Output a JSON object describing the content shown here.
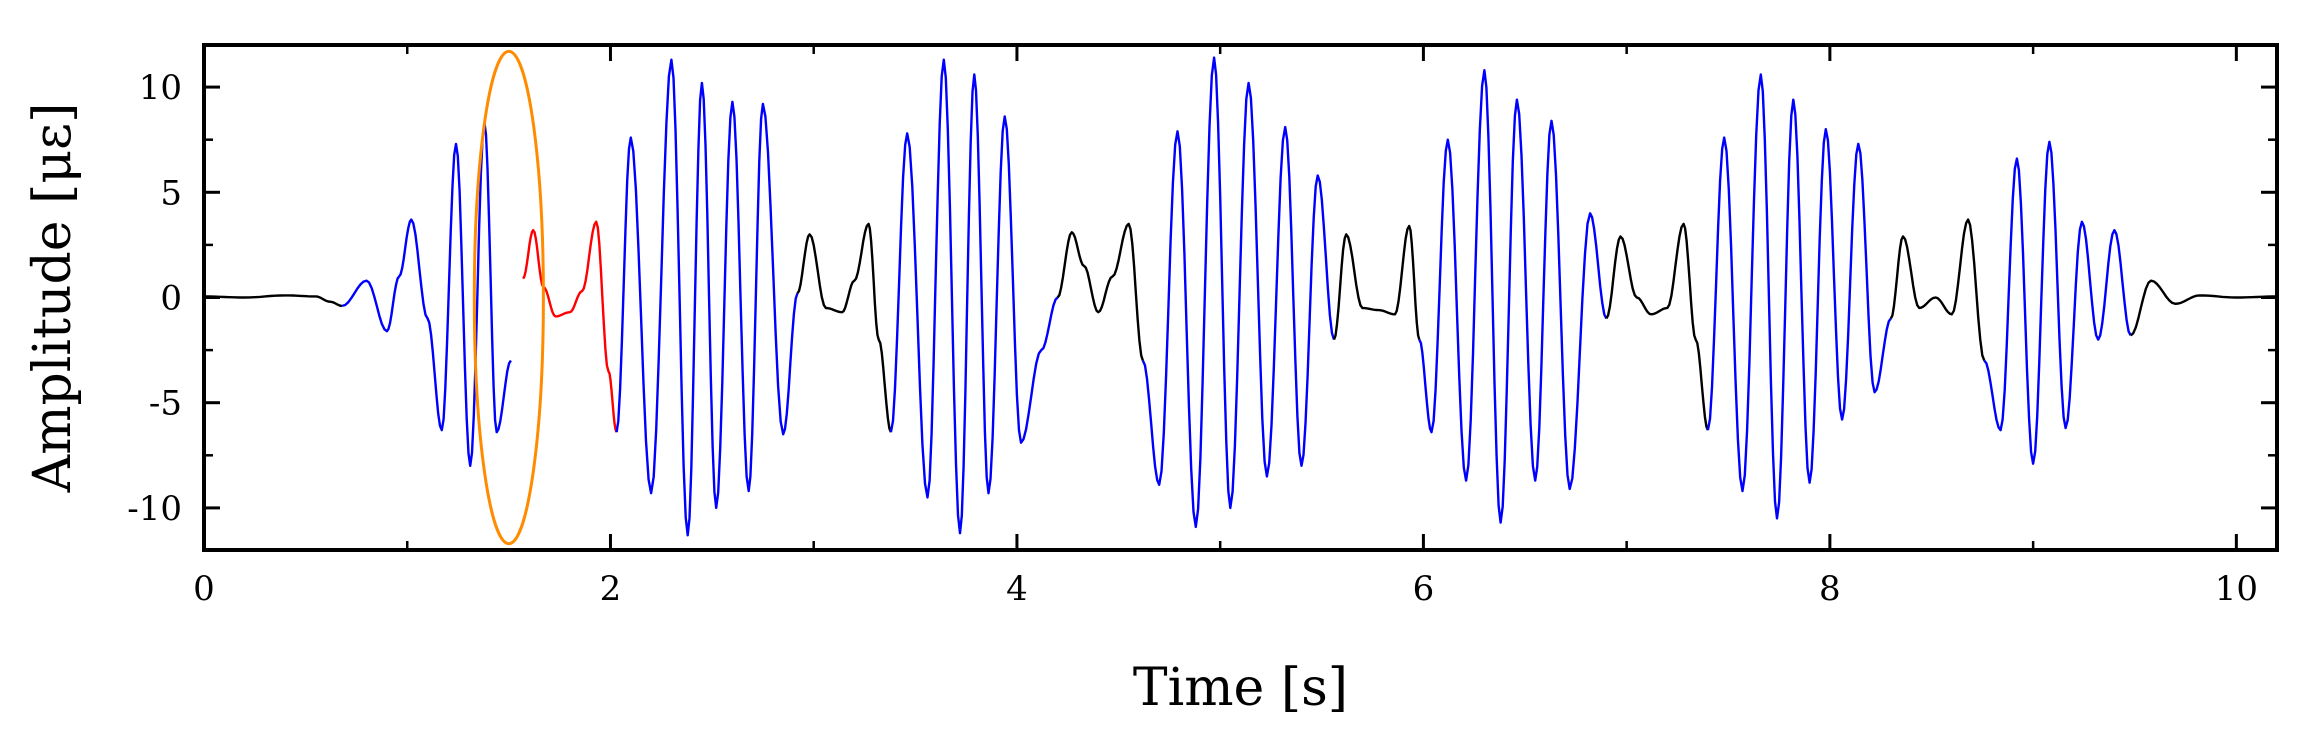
{
  "chart_data": {
    "type": "line",
    "title": "",
    "xlabel": "Time [s]",
    "ylabel": "Amplitude [με]",
    "xlim": [
      0,
      10.2
    ],
    "ylim": [
      -12,
      12
    ],
    "xticks": [
      0,
      2,
      4,
      6,
      8,
      10
    ],
    "yticks": [
      -10,
      -5,
      0,
      5,
      10
    ],
    "xtick_labels": [
      "0",
      "2",
      "4",
      "6",
      "8",
      "10"
    ],
    "ytick_labels": [
      "-10",
      "-5",
      "0",
      "5",
      "10"
    ],
    "grid": false,
    "colors": {
      "main": "#0000ff",
      "baseline": "#000000",
      "highlight": "#ff0000",
      "ellipse": "#ff8c00"
    },
    "series": [
      {
        "color": "#000000",
        "x": [
          0,
          0.2,
          0.4,
          0.55,
          0.62,
          0.68
        ],
        "y": [
          0.05,
          0.0,
          0.1,
          0.05,
          -0.2,
          -0.4
        ]
      },
      {
        "color": "#0000ff",
        "x": [
          0.68,
          0.8,
          0.9,
          0.96,
          1.02,
          1.1,
          1.17,
          1.24,
          1.31,
          1.38,
          1.44,
          1.51
        ],
        "y": [
          -0.4,
          0.8,
          -1.6,
          1.0,
          3.7,
          -1.0,
          -6.3,
          7.3,
          -8.0,
          8.3,
          -6.4,
          -3.0
        ]
      },
      {
        "color": "#ff0000",
        "x": [
          1.57,
          1.62,
          1.67,
          1.73,
          1.8,
          1.86,
          1.93,
          1.99,
          2.03
        ],
        "y": [
          0.9,
          3.2,
          0.5,
          -0.9,
          -0.7,
          0.3,
          3.6,
          -3.5,
          -6.4
        ]
      },
      {
        "color": "#0000ff",
        "x": [
          2.03,
          2.1,
          2.2,
          2.3,
          2.38,
          2.45,
          2.52,
          2.6,
          2.68,
          2.75,
          2.85,
          2.92
        ],
        "y": [
          -6.4,
          7.6,
          -9.3,
          11.3,
          -11.3,
          10.2,
          -10.0,
          9.3,
          -9.2,
          9.2,
          -6.5,
          0.2
        ]
      },
      {
        "color": "#000000",
        "x": [
          2.92,
          2.98,
          3.06,
          3.14,
          3.2,
          3.27,
          3.32,
          3.38
        ],
        "y": [
          0.2,
          3.0,
          -0.5,
          -0.7,
          0.8,
          3.5,
          -2.0,
          -6.4
        ]
      },
      {
        "color": "#0000ff",
        "x": [
          3.38,
          3.46,
          3.56,
          3.64,
          3.72,
          3.79,
          3.86,
          3.94,
          4.02,
          4.12,
          4.2
        ],
        "y": [
          -6.4,
          7.8,
          -9.5,
          11.3,
          -11.2,
          10.6,
          -9.3,
          8.6,
          -6.9,
          -2.5,
          0.0
        ]
      },
      {
        "color": "#000000",
        "x": [
          4.2,
          4.27,
          4.33,
          4.4,
          4.47,
          4.55,
          4.62
        ],
        "y": [
          0.0,
          3.1,
          1.5,
          -0.7,
          1.0,
          3.5,
          -3.0
        ]
      },
      {
        "color": "#0000ff",
        "x": [
          4.62,
          4.7,
          4.79,
          4.88,
          4.97,
          5.05,
          5.14,
          5.23,
          5.32,
          5.4,
          5.48,
          5.56
        ],
        "y": [
          -3.0,
          -8.9,
          7.9,
          -10.9,
          11.4,
          -10.0,
          10.2,
          -8.5,
          8.1,
          -8.0,
          5.8,
          -2.0
        ]
      },
      {
        "color": "#000000",
        "x": [
          5.56,
          5.62,
          5.7,
          5.78,
          5.86,
          5.93,
          5.98
        ],
        "y": [
          -2.0,
          3.0,
          -0.5,
          -0.6,
          -0.8,
          3.4,
          -2.0
        ]
      },
      {
        "color": "#0000ff",
        "x": [
          5.98,
          6.04,
          6.12,
          6.21,
          6.3,
          6.38,
          6.46,
          6.55,
          6.63,
          6.72,
          6.82,
          6.9
        ],
        "y": [
          -2.0,
          -6.4,
          7.5,
          -8.7,
          10.8,
          -10.7,
          9.4,
          -8.7,
          8.4,
          -9.1,
          4.0,
          -1.0
        ]
      },
      {
        "color": "#000000",
        "x": [
          6.9,
          6.97,
          7.05,
          7.12,
          7.2,
          7.28,
          7.34,
          7.4
        ],
        "y": [
          -1.0,
          2.9,
          0.0,
          -0.8,
          -0.5,
          3.5,
          -2.0,
          -6.3
        ]
      },
      {
        "color": "#0000ff",
        "x": [
          7.4,
          7.48,
          7.57,
          7.66,
          7.74,
          7.82,
          7.9,
          7.98,
          8.06,
          8.14,
          8.22,
          8.3
        ],
        "y": [
          -6.3,
          7.6,
          -9.2,
          10.6,
          -10.5,
          9.4,
          -8.8,
          8.0,
          -5.8,
          7.3,
          -4.5,
          -1.0
        ]
      },
      {
        "color": "#000000",
        "x": [
          8.3,
          8.36,
          8.44,
          8.52,
          8.6,
          8.68,
          8.76
        ],
        "y": [
          -1.0,
          2.9,
          -0.5,
          0.0,
          -0.8,
          3.7,
          -3.0
        ]
      },
      {
        "color": "#0000ff",
        "x": [
          8.76,
          8.84,
          8.92,
          9.0,
          9.08,
          9.16,
          9.24,
          9.32,
          9.4,
          9.48
        ],
        "y": [
          -3.0,
          -6.3,
          6.6,
          -7.9,
          7.4,
          -6.2,
          3.6,
          -2.0,
          3.2,
          -1.8
        ]
      },
      {
        "color": "#000000",
        "x": [
          9.48,
          9.58,
          9.7,
          9.82,
          10.0,
          10.2
        ],
        "y": [
          -1.8,
          0.8,
          -0.3,
          0.1,
          0.0,
          0.05
        ]
      }
    ],
    "annotation": {
      "shape": "ellipse",
      "color": "#ff8c00",
      "center": [
        1.5,
        0
      ],
      "rx": 0.17,
      "ry": 11.7
    }
  }
}
